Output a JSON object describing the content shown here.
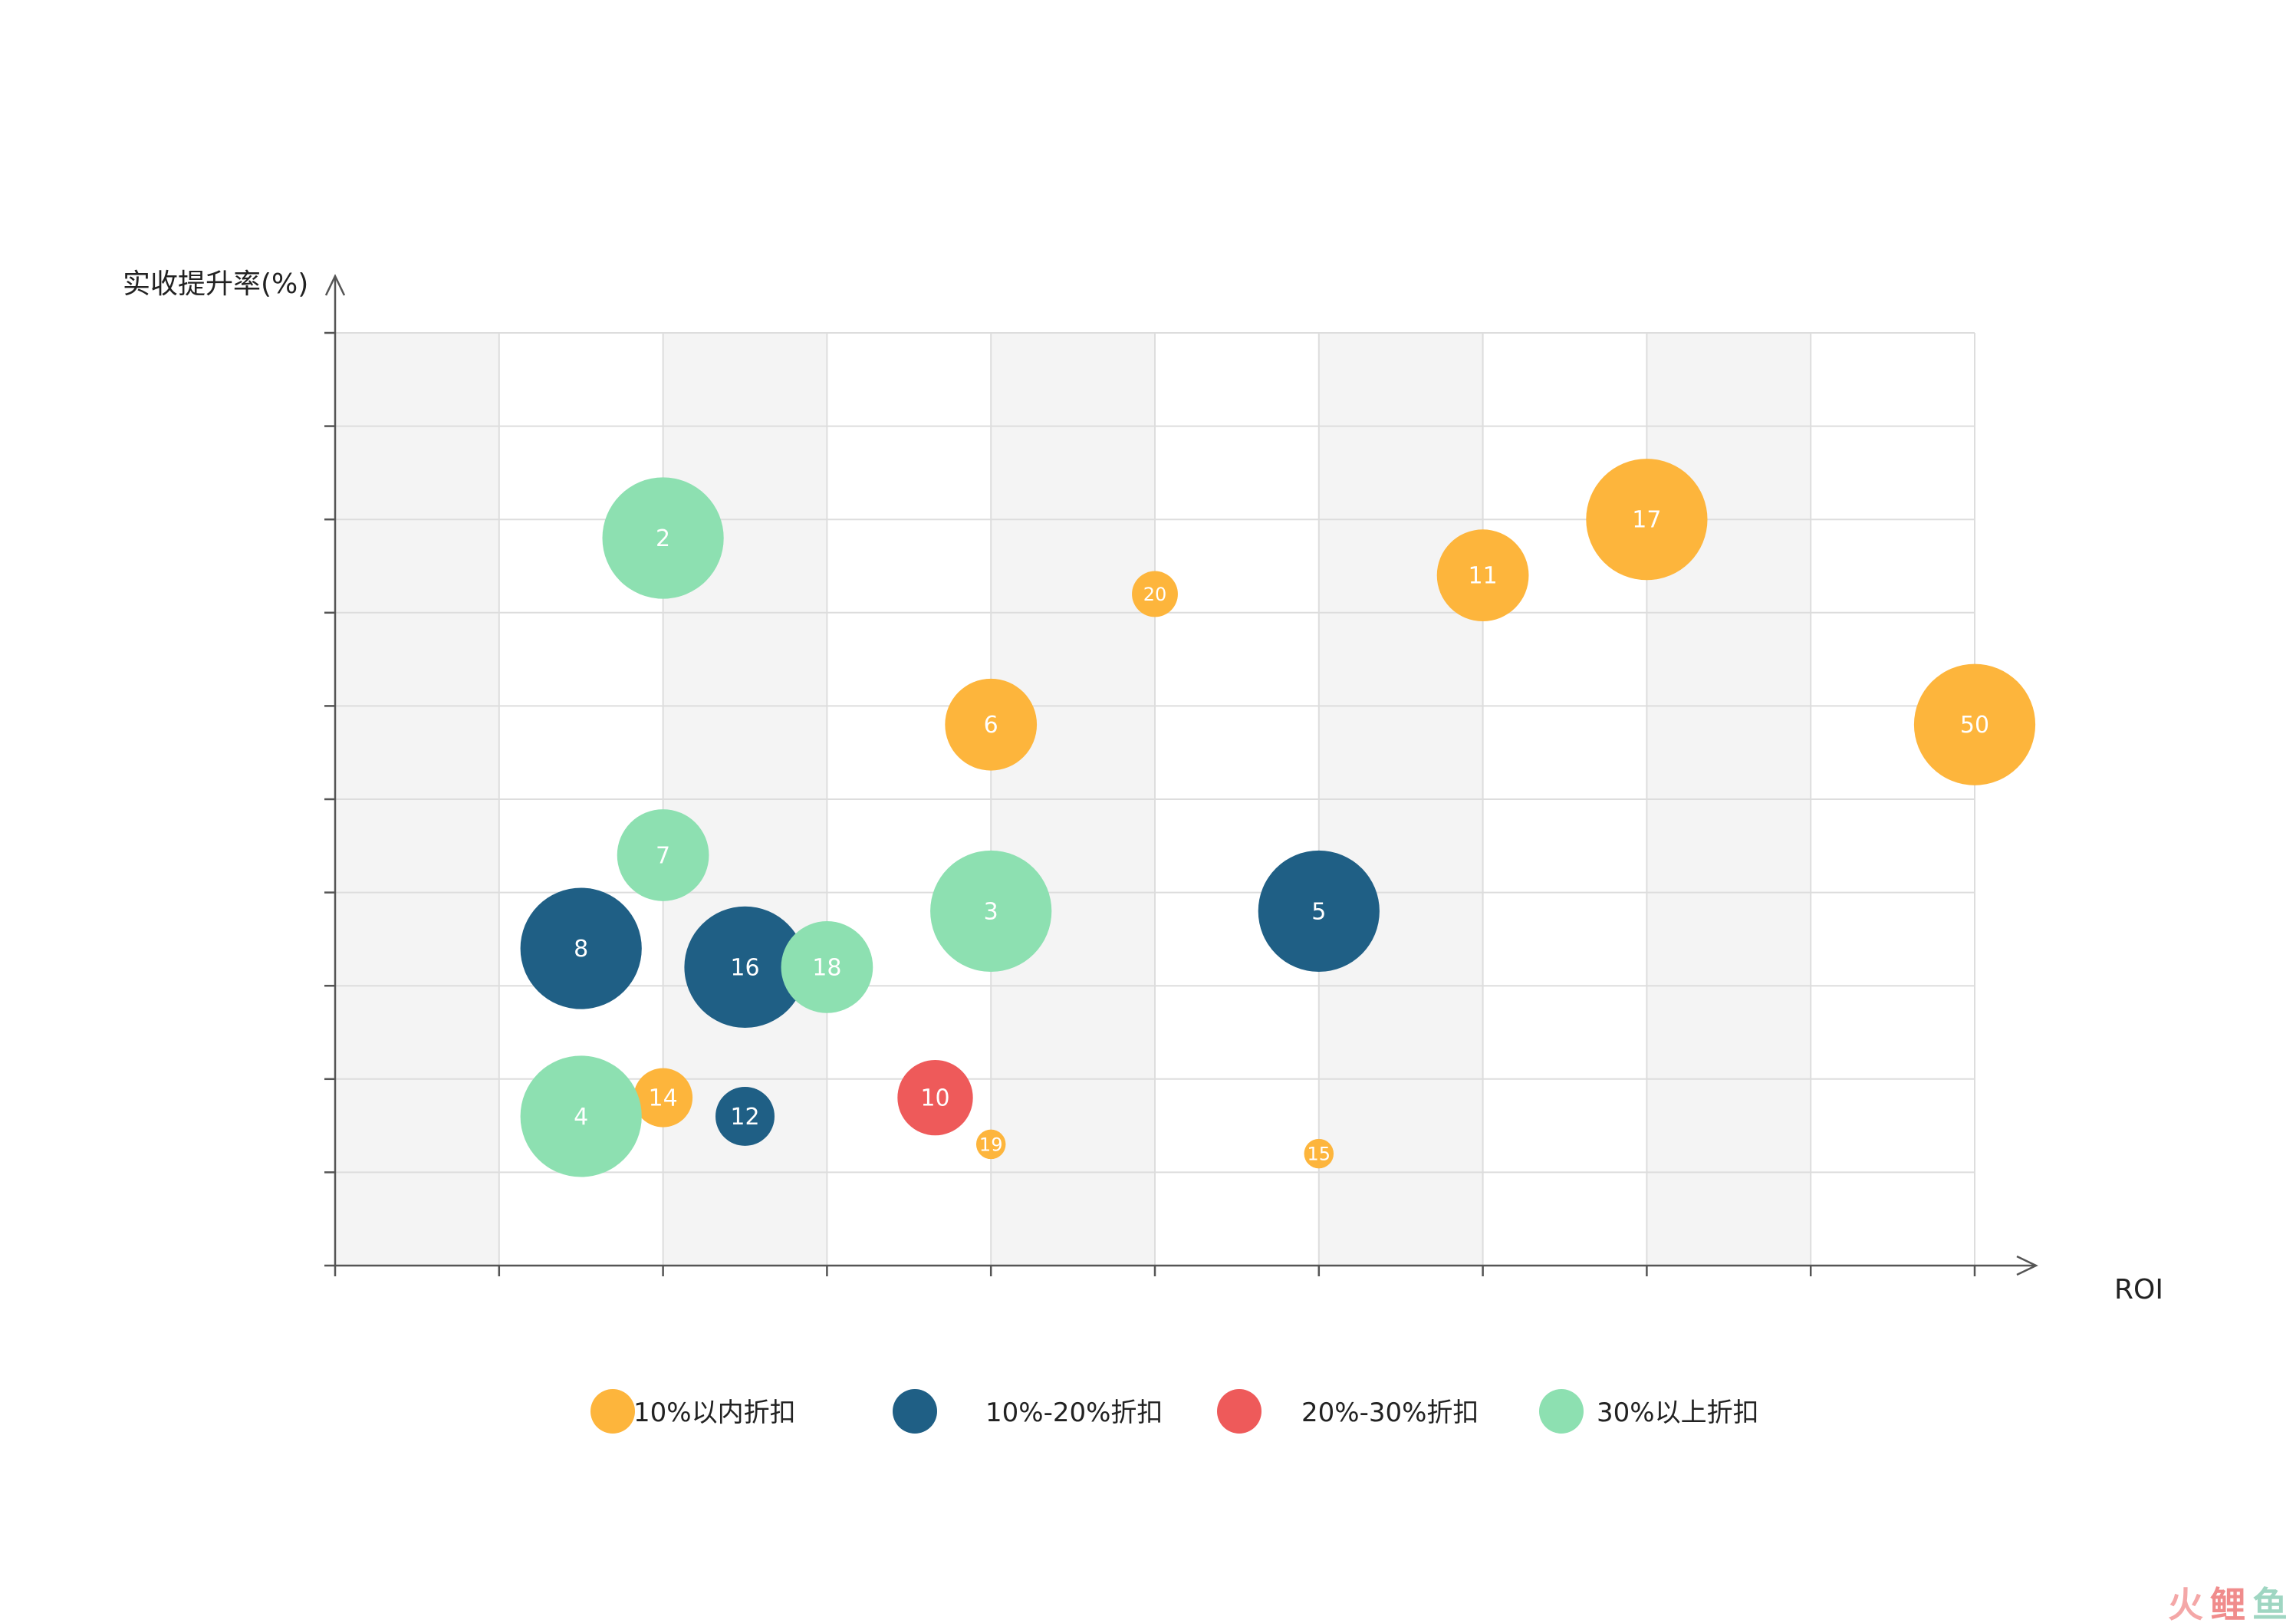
{
  "chart_data": {
    "type": "scatter",
    "subtype": "bubble",
    "title": "",
    "ylabel": "实收提升率(%)",
    "xlabel": "ROI",
    "xlim": [
      0,
      10
    ],
    "ylim": [
      0,
      10
    ],
    "grid": true,
    "alternating_bands": true,
    "legend_position": "bottom",
    "colors": {
      "10%以内折扣": "#FDB53C",
      "10%-20%折扣": "#1F5F85",
      "20%-30%折扣": "#EE5A5A",
      "30%以上折扣": "#8DE0B1"
    },
    "series": [
      {
        "name": "10%以内折扣",
        "points": [
          {
            "label": "17",
            "x": 8.0,
            "y": 8.0,
            "r": 0.37
          },
          {
            "label": "11",
            "x": 7.0,
            "y": 7.4,
            "r": 0.28
          },
          {
            "label": "20",
            "x": 5.0,
            "y": 7.2,
            "r": 0.14
          },
          {
            "label": "6",
            "x": 4.0,
            "y": 5.8,
            "r": 0.28
          },
          {
            "label": "50",
            "x": 10.0,
            "y": 5.8,
            "r": 0.37
          },
          {
            "label": "14",
            "x": 2.0,
            "y": 1.8,
            "r": 0.18
          },
          {
            "label": "19",
            "x": 4.0,
            "y": 1.3,
            "r": 0.09
          },
          {
            "label": "15",
            "x": 6.0,
            "y": 1.2,
            "r": 0.09
          }
        ]
      },
      {
        "name": "10%-20%折扣",
        "points": [
          {
            "label": "8",
            "x": 1.5,
            "y": 3.4,
            "r": 0.37
          },
          {
            "label": "16",
            "x": 2.5,
            "y": 3.2,
            "r": 0.37
          },
          {
            "label": "5",
            "x": 6.0,
            "y": 3.8,
            "r": 0.37
          },
          {
            "label": "12",
            "x": 2.5,
            "y": 1.6,
            "r": 0.18
          }
        ]
      },
      {
        "name": "20%-30%折扣",
        "points": [
          {
            "label": "10",
            "x": 3.66,
            "y": 1.8,
            "r": 0.23
          }
        ]
      },
      {
        "name": "30%以上折扣",
        "points": [
          {
            "label": "2",
            "x": 2.0,
            "y": 7.8,
            "r": 0.37
          },
          {
            "label": "7",
            "x": 2.0,
            "y": 4.4,
            "r": 0.28
          },
          {
            "label": "3",
            "x": 4.0,
            "y": 3.8,
            "r": 0.37
          },
          {
            "label": "18",
            "x": 3.0,
            "y": 3.2,
            "r": 0.28
          },
          {
            "label": "4",
            "x": 1.5,
            "y": 1.6,
            "r": 0.37
          }
        ]
      }
    ]
  },
  "watermark": {
    "chars": [
      "火",
      "鲤",
      "鱼"
    ],
    "colors": [
      "#F4A7A7",
      "#F08C8C",
      "#9FD6C2"
    ]
  }
}
